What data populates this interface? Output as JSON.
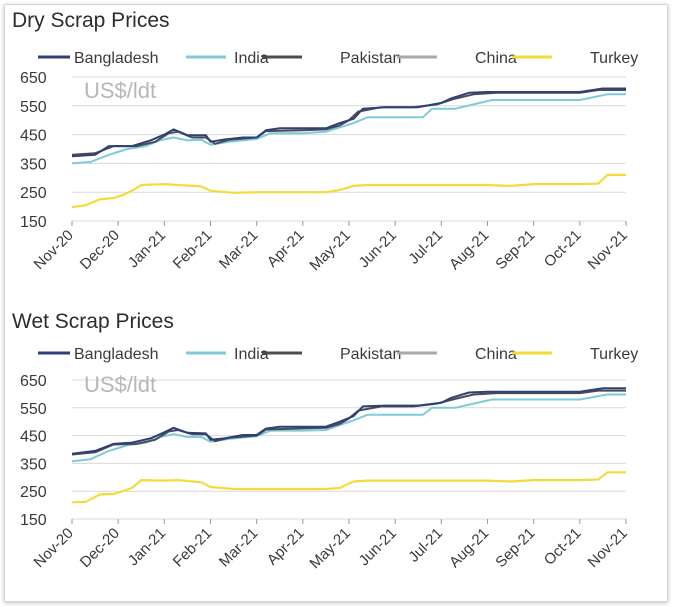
{
  "charts": [
    {
      "id": "dry",
      "title": "Dry Scrap Prices",
      "unit_label": "US$/ldt"
    },
    {
      "id": "wet",
      "title": "Wet Scrap Prices",
      "unit_label": "US$/ldt"
    }
  ],
  "colors": {
    "Bangladesh": "#2f3f7a",
    "India": "#7ecbd8",
    "Pakistan": "#4a4c52",
    "China": "#a9a9a9",
    "Turkey": "#f3dc3a"
  },
  "chart_data": [
    {
      "type": "line",
      "title": "Dry Scrap Prices",
      "annotation": "US$/ldt",
      "ylim": [
        150,
        650
      ],
      "yticks": [
        150,
        250,
        350,
        450,
        550,
        650
      ],
      "x_ticks": [
        "Nov-20",
        "Dec-20",
        "Jan-21",
        "Feb-21",
        "Mar-21",
        "Apr-21",
        "May-21",
        "Jun-21",
        "Jul-21",
        "Aug-21",
        "Sep-21",
        "Oct-21",
        "Nov-21"
      ],
      "xlim": [
        0,
        12
      ],
      "grid": "horizontal",
      "legend": "top",
      "series": [
        {
          "name": "Bangladesh",
          "points": [
            [
              0,
              375
            ],
            [
              0.5,
              380
            ],
            [
              0.8,
              410
            ],
            [
              1.3,
              410
            ],
            [
              1.7,
              430
            ],
            [
              2.0,
              450
            ],
            [
              2.2,
              468
            ],
            [
              2.5,
              448
            ],
            [
              2.9,
              448
            ],
            [
              3.0,
              425
            ],
            [
              3.3,
              433
            ],
            [
              3.7,
              440
            ],
            [
              4.0,
              440
            ],
            [
              4.2,
              465
            ],
            [
              4.5,
              472
            ],
            [
              5.0,
              472
            ],
            [
              5.5,
              472
            ],
            [
              5.8,
              490
            ],
            [
              6.1,
              505
            ],
            [
              6.3,
              540
            ],
            [
              6.8,
              545
            ],
            [
              7.5,
              545
            ],
            [
              8.0,
              560
            ],
            [
              8.2,
              575
            ],
            [
              8.6,
              595
            ],
            [
              9.0,
              598
            ],
            [
              10.0,
              598
            ],
            [
              11.0,
              598
            ],
            [
              11.5,
              610
            ],
            [
              12.0,
              610
            ]
          ]
        },
        {
          "name": "India",
          "points": [
            [
              0,
              350
            ],
            [
              0.4,
              355
            ],
            [
              0.8,
              380
            ],
            [
              1.2,
              400
            ],
            [
              1.6,
              410
            ],
            [
              1.9,
              430
            ],
            [
              2.2,
              440
            ],
            [
              2.5,
              430
            ],
            [
              2.8,
              432
            ],
            [
              3.0,
              415
            ],
            [
              3.4,
              425
            ],
            [
              4.0,
              435
            ],
            [
              4.3,
              455
            ],
            [
              5.0,
              455
            ],
            [
              5.5,
              460
            ],
            [
              5.8,
              475
            ],
            [
              6.1,
              490
            ],
            [
              6.4,
              510
            ],
            [
              7.0,
              510
            ],
            [
              7.6,
              510
            ],
            [
              7.8,
              540
            ],
            [
              8.3,
              540
            ],
            [
              8.7,
              555
            ],
            [
              9.1,
              570
            ],
            [
              10.0,
              570
            ],
            [
              11.0,
              570
            ],
            [
              11.6,
              590
            ],
            [
              12.0,
              590
            ]
          ]
        },
        {
          "name": "Pakistan",
          "points": [
            [
              0,
              380
            ],
            [
              0.5,
              385
            ],
            [
              0.9,
              410
            ],
            [
              1.4,
              410
            ],
            [
              1.8,
              425
            ],
            [
              2.1,
              455
            ],
            [
              2.3,
              460
            ],
            [
              2.6,
              440
            ],
            [
              2.9,
              440
            ],
            [
              3.1,
              418
            ],
            [
              3.4,
              432
            ],
            [
              4.0,
              440
            ],
            [
              4.2,
              462
            ],
            [
              5.0,
              465
            ],
            [
              5.5,
              468
            ],
            [
              5.8,
              482
            ],
            [
              6.0,
              500
            ],
            [
              6.2,
              530
            ],
            [
              6.7,
              545
            ],
            [
              7.4,
              545
            ],
            [
              7.9,
              555
            ],
            [
              8.3,
              575
            ],
            [
              8.7,
              590
            ],
            [
              9.2,
              595
            ],
            [
              10.0,
              595
            ],
            [
              11.0,
              595
            ],
            [
              11.4,
              605
            ],
            [
              12.0,
              605
            ]
          ]
        },
        {
          "name": "China",
          "points": []
        },
        {
          "name": "Turkey",
          "points": [
            [
              0,
              198
            ],
            [
              0.3,
              205
            ],
            [
              0.6,
              225
            ],
            [
              0.9,
              230
            ],
            [
              1.1,
              240
            ],
            [
              1.3,
              255
            ],
            [
              1.5,
              275
            ],
            [
              2.0,
              278
            ],
            [
              2.3,
              275
            ],
            [
              2.8,
              270
            ],
            [
              3.0,
              255
            ],
            [
              3.5,
              248
            ],
            [
              4.0,
              250
            ],
            [
              5.0,
              250
            ],
            [
              5.5,
              250
            ],
            [
              5.8,
              258
            ],
            [
              6.1,
              272
            ],
            [
              6.4,
              275
            ],
            [
              7.0,
              275
            ],
            [
              8.0,
              275
            ],
            [
              9.0,
              275
            ],
            [
              9.5,
              272
            ],
            [
              10.0,
              278
            ],
            [
              11.0,
              278
            ],
            [
              11.4,
              280
            ],
            [
              11.6,
              310
            ],
            [
              12.0,
              310
            ]
          ]
        }
      ]
    },
    {
      "type": "line",
      "title": "Wet Scrap Prices",
      "annotation": "US$/ldt",
      "ylim": [
        150,
        650
      ],
      "yticks": [
        150,
        250,
        350,
        450,
        550,
        650
      ],
      "x_ticks": [
        "Nov-20",
        "Dec-20",
        "Jan-21",
        "Feb-21",
        "Mar-21",
        "Apr-21",
        "May-21",
        "Jun-21",
        "Jul-21",
        "Aug-21",
        "Sep-21",
        "Oct-21",
        "Nov-21"
      ],
      "xlim": [
        0,
        12
      ],
      "grid": "horizontal",
      "legend": "top",
      "series": [
        {
          "name": "Bangladesh",
          "points": [
            [
              0,
              385
            ],
            [
              0.5,
              395
            ],
            [
              0.9,
              420
            ],
            [
              1.3,
              425
            ],
            [
              1.7,
              440
            ],
            [
              2.0,
              462
            ],
            [
              2.2,
              478
            ],
            [
              2.5,
              460
            ],
            [
              2.9,
              458
            ],
            [
              3.0,
              435
            ],
            [
              3.3,
              440
            ],
            [
              3.7,
              452
            ],
            [
              4.0,
              452
            ],
            [
              4.2,
              475
            ],
            [
              4.5,
              482
            ],
            [
              5.0,
              482
            ],
            [
              5.5,
              482
            ],
            [
              5.8,
              500
            ],
            [
              6.1,
              520
            ],
            [
              6.3,
              555
            ],
            [
              6.8,
              558
            ],
            [
              7.5,
              558
            ],
            [
              8.0,
              568
            ],
            [
              8.2,
              585
            ],
            [
              8.6,
              605
            ],
            [
              9.0,
              608
            ],
            [
              10.0,
              608
            ],
            [
              11.0,
              608
            ],
            [
              11.5,
              620
            ],
            [
              12.0,
              620
            ]
          ]
        },
        {
          "name": "India",
          "points": [
            [
              0,
              358
            ],
            [
              0.4,
              365
            ],
            [
              0.8,
              395
            ],
            [
              1.2,
              415
            ],
            [
              1.6,
              425
            ],
            [
              1.9,
              445
            ],
            [
              2.2,
              455
            ],
            [
              2.5,
              445
            ],
            [
              2.8,
              445
            ],
            [
              3.0,
              428
            ],
            [
              3.4,
              438
            ],
            [
              4.0,
              448
            ],
            [
              4.3,
              468
            ],
            [
              5.0,
              468
            ],
            [
              5.5,
              470
            ],
            [
              5.8,
              488
            ],
            [
              6.1,
              505
            ],
            [
              6.4,
              525
            ],
            [
              7.0,
              525
            ],
            [
              7.6,
              525
            ],
            [
              7.8,
              550
            ],
            [
              8.3,
              550
            ],
            [
              8.7,
              565
            ],
            [
              9.1,
              580
            ],
            [
              10.0,
              580
            ],
            [
              11.0,
              580
            ],
            [
              11.6,
              598
            ],
            [
              12.0,
              598
            ]
          ]
        },
        {
          "name": "Pakistan",
          "points": [
            [
              0,
              382
            ],
            [
              0.5,
              390
            ],
            [
              0.9,
              418
            ],
            [
              1.4,
              420
            ],
            [
              1.8,
              435
            ],
            [
              2.1,
              465
            ],
            [
              2.3,
              470
            ],
            [
              2.6,
              455
            ],
            [
              2.9,
              455
            ],
            [
              3.1,
              430
            ],
            [
              3.4,
              442
            ],
            [
              4.0,
              450
            ],
            [
              4.2,
              472
            ],
            [
              5.0,
              476
            ],
            [
              5.5,
              478
            ],
            [
              5.8,
              492
            ],
            [
              6.0,
              512
            ],
            [
              6.2,
              540
            ],
            [
              6.7,
              555
            ],
            [
              7.4,
              555
            ],
            [
              7.9,
              565
            ],
            [
              8.3,
              582
            ],
            [
              8.7,
              598
            ],
            [
              9.2,
              603
            ],
            [
              10.0,
              603
            ],
            [
              11.0,
              603
            ],
            [
              11.4,
              612
            ],
            [
              12.0,
              612
            ]
          ]
        },
        {
          "name": "China",
          "points": []
        },
        {
          "name": "Turkey",
          "points": [
            [
              0,
              210
            ],
            [
              0.3,
              212
            ],
            [
              0.6,
              238
            ],
            [
              0.9,
              240
            ],
            [
              1.1,
              250
            ],
            [
              1.3,
              262
            ],
            [
              1.5,
              290
            ],
            [
              2.0,
              288
            ],
            [
              2.3,
              290
            ],
            [
              2.8,
              282
            ],
            [
              3.0,
              265
            ],
            [
              3.5,
              258
            ],
            [
              4.0,
              258
            ],
            [
              5.0,
              258
            ],
            [
              5.5,
              258
            ],
            [
              5.8,
              262
            ],
            [
              6.1,
              285
            ],
            [
              6.4,
              288
            ],
            [
              7.0,
              288
            ],
            [
              8.0,
              288
            ],
            [
              9.0,
              288
            ],
            [
              9.5,
              285
            ],
            [
              10.0,
              290
            ],
            [
              11.0,
              290
            ],
            [
              11.4,
              292
            ],
            [
              11.6,
              318
            ],
            [
              12.0,
              318
            ]
          ]
        }
      ]
    }
  ]
}
